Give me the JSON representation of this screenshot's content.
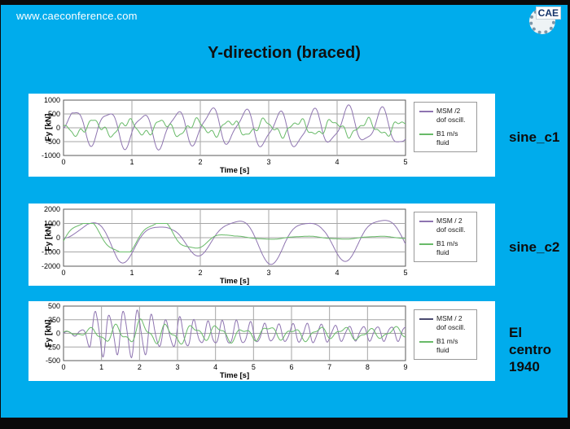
{
  "header": {
    "url": "www.caeconference.com",
    "logo_text": "CAE"
  },
  "title": "Y-direction (braced)",
  "colors": {
    "background": "#00ACEC",
    "frame": "#0a0a0a",
    "panel": "#ffffff",
    "grid": "#a6a6a6",
    "plot_border": "#595959",
    "msm_purple": "#8e74b0",
    "b1_green": "#68ba68"
  },
  "chart_data": [
    {
      "type": "line",
      "side_label": "sine_c1",
      "ylabel": "Fy [kN]",
      "xlabel": "Time [s]",
      "xlim": [
        0,
        5
      ],
      "ylim": [
        -1000,
        1000
      ],
      "xticks": [
        0,
        1,
        2,
        3,
        4,
        5
      ],
      "yticks": [
        1000,
        500,
        0,
        -500,
        -1000
      ],
      "grid": true,
      "legend_position": "right",
      "legend": [
        {
          "label": "MSM /2\ndof oscill.",
          "color": "#8e74b0"
        },
        {
          "label": "B1 m/s\nfluid",
          "color": "#68ba68"
        }
      ],
      "series": [
        {
          "name": "MSM /2 dof oscill.",
          "color": "#8e74b0",
          "harmonics": [
            [
              600,
              2.0,
              -0.4
            ],
            [
              150,
              4.1,
              0.7
            ],
            [
              90,
              0.5,
              0.9
            ]
          ],
          "envelope": [
            [
              0,
              0.15
            ],
            [
              0.12,
              1
            ],
            [
              5,
              1
            ]
          ]
        },
        {
          "name": "B1 m/s fluid",
          "color": "#68ba68",
          "harmonics": [
            [
              240,
              2.0,
              2.3
            ],
            [
              90,
              5.2,
              0.2
            ],
            [
              60,
              8.3,
              1.1
            ]
          ],
          "envelope": [
            [
              0,
              0.25
            ],
            [
              0.15,
              1
            ],
            [
              5,
              1
            ]
          ]
        }
      ]
    },
    {
      "type": "line",
      "side_label": "sine_c2",
      "ylabel": "Fy [kN]",
      "xlabel": "Time [s]",
      "xlim": [
        0,
        5
      ],
      "ylim": [
        -2000,
        2000
      ],
      "xticks": [
        0,
        1,
        2,
        3,
        4,
        5
      ],
      "yticks": [
        2000,
        1000,
        0,
        -1000,
        -2000
      ],
      "grid": true,
      "legend_position": "right",
      "legend": [
        {
          "label": "MSM / 2\ndof oscill.",
          "color": "#8e74b0"
        },
        {
          "label": "B1 m/s\nfluid",
          "color": "#68ba68"
        }
      ],
      "series": [
        {
          "name": "MSM / 2 dof oscill.",
          "color": "#8e74b0",
          "harmonics": [
            [
              1400,
              0.93,
              -0.5
            ],
            [
              300,
              1.86,
              0.9
            ]
          ],
          "envelope": [
            [
              0,
              0.02
            ],
            [
              0.35,
              0.85
            ],
            [
              0.8,
              1.1
            ],
            [
              1.6,
              0.55
            ],
            [
              2.2,
              0.9
            ],
            [
              3.2,
              1.15
            ],
            [
              3.8,
              0.75
            ],
            [
              4.4,
              1.2
            ],
            [
              5,
              0.9
            ]
          ],
          "clip": [
            -1900,
            1900
          ]
        },
        {
          "name": "B1 m/s fluid",
          "color": "#68ba68",
          "harmonics": [
            [
              1850,
              0.93,
              -0.25
            ],
            [
              250,
              2.8,
              0.3
            ]
          ],
          "envelope": [
            [
              0,
              0.62
            ],
            [
              1.6,
              0.62
            ],
            [
              2.1,
              0.3
            ],
            [
              2.5,
              0.06
            ],
            [
              5,
              0.05
            ]
          ],
          "clip": [
            -1000,
            1000
          ]
        }
      ]
    },
    {
      "type": "line",
      "side_label": "El centro\n1940",
      "ylabel": "Fy [kN]",
      "xlabel": "Time [s]",
      "xlim": [
        0,
        9
      ],
      "ylim": [
        -500,
        500
      ],
      "xticks": [
        0,
        1,
        2,
        3,
        4,
        5,
        6,
        7,
        8,
        9
      ],
      "yticks": [
        500,
        250,
        0,
        -250,
        -500
      ],
      "grid": true,
      "legend_position": "right",
      "legend": [
        {
          "label": "MSM / 2\ndof oscill.",
          "color": "#4a4a70"
        },
        {
          "label": "B1 m/s\nfluid",
          "color": "#68ba68"
        }
      ],
      "series": [
        {
          "name": "MSM / 2 dof oscill.",
          "color": "#8e74b0",
          "harmonics": [
            [
              430,
              2.7,
              -0.2
            ],
            [
              70,
              5.3,
              0.8
            ]
          ],
          "envelope": [
            [
              0,
              0.08
            ],
            [
              0.45,
              0.12
            ],
            [
              0.65,
              0.45
            ],
            [
              0.85,
              1.05
            ],
            [
              1.25,
              0.75
            ],
            [
              1.7,
              1.0
            ],
            [
              2.15,
              0.9
            ],
            [
              2.6,
              0.5
            ],
            [
              3.1,
              0.65
            ],
            [
              3.6,
              0.45
            ],
            [
              4.5,
              0.5
            ],
            [
              5.5,
              0.35
            ],
            [
              6.5,
              0.4
            ],
            [
              7.5,
              0.3
            ],
            [
              9,
              0.3
            ]
          ],
          "clip": [
            -490,
            490
          ]
        },
        {
          "name": "B1 m/s fluid",
          "color": "#68ba68",
          "harmonics": [
            [
              150,
              1.5,
              1.0
            ],
            [
              65,
              3.1,
              0.3
            ],
            [
              40,
              0.6,
              0
            ]
          ],
          "envelope": [
            [
              0,
              0.15
            ],
            [
              0.7,
              0.45
            ],
            [
              1.4,
              1.0
            ],
            [
              2.3,
              1.15
            ],
            [
              3.2,
              0.85
            ],
            [
              4.2,
              0.75
            ],
            [
              5.5,
              0.65
            ],
            [
              7,
              0.6
            ],
            [
              9,
              0.5
            ]
          ]
        }
      ]
    }
  ]
}
